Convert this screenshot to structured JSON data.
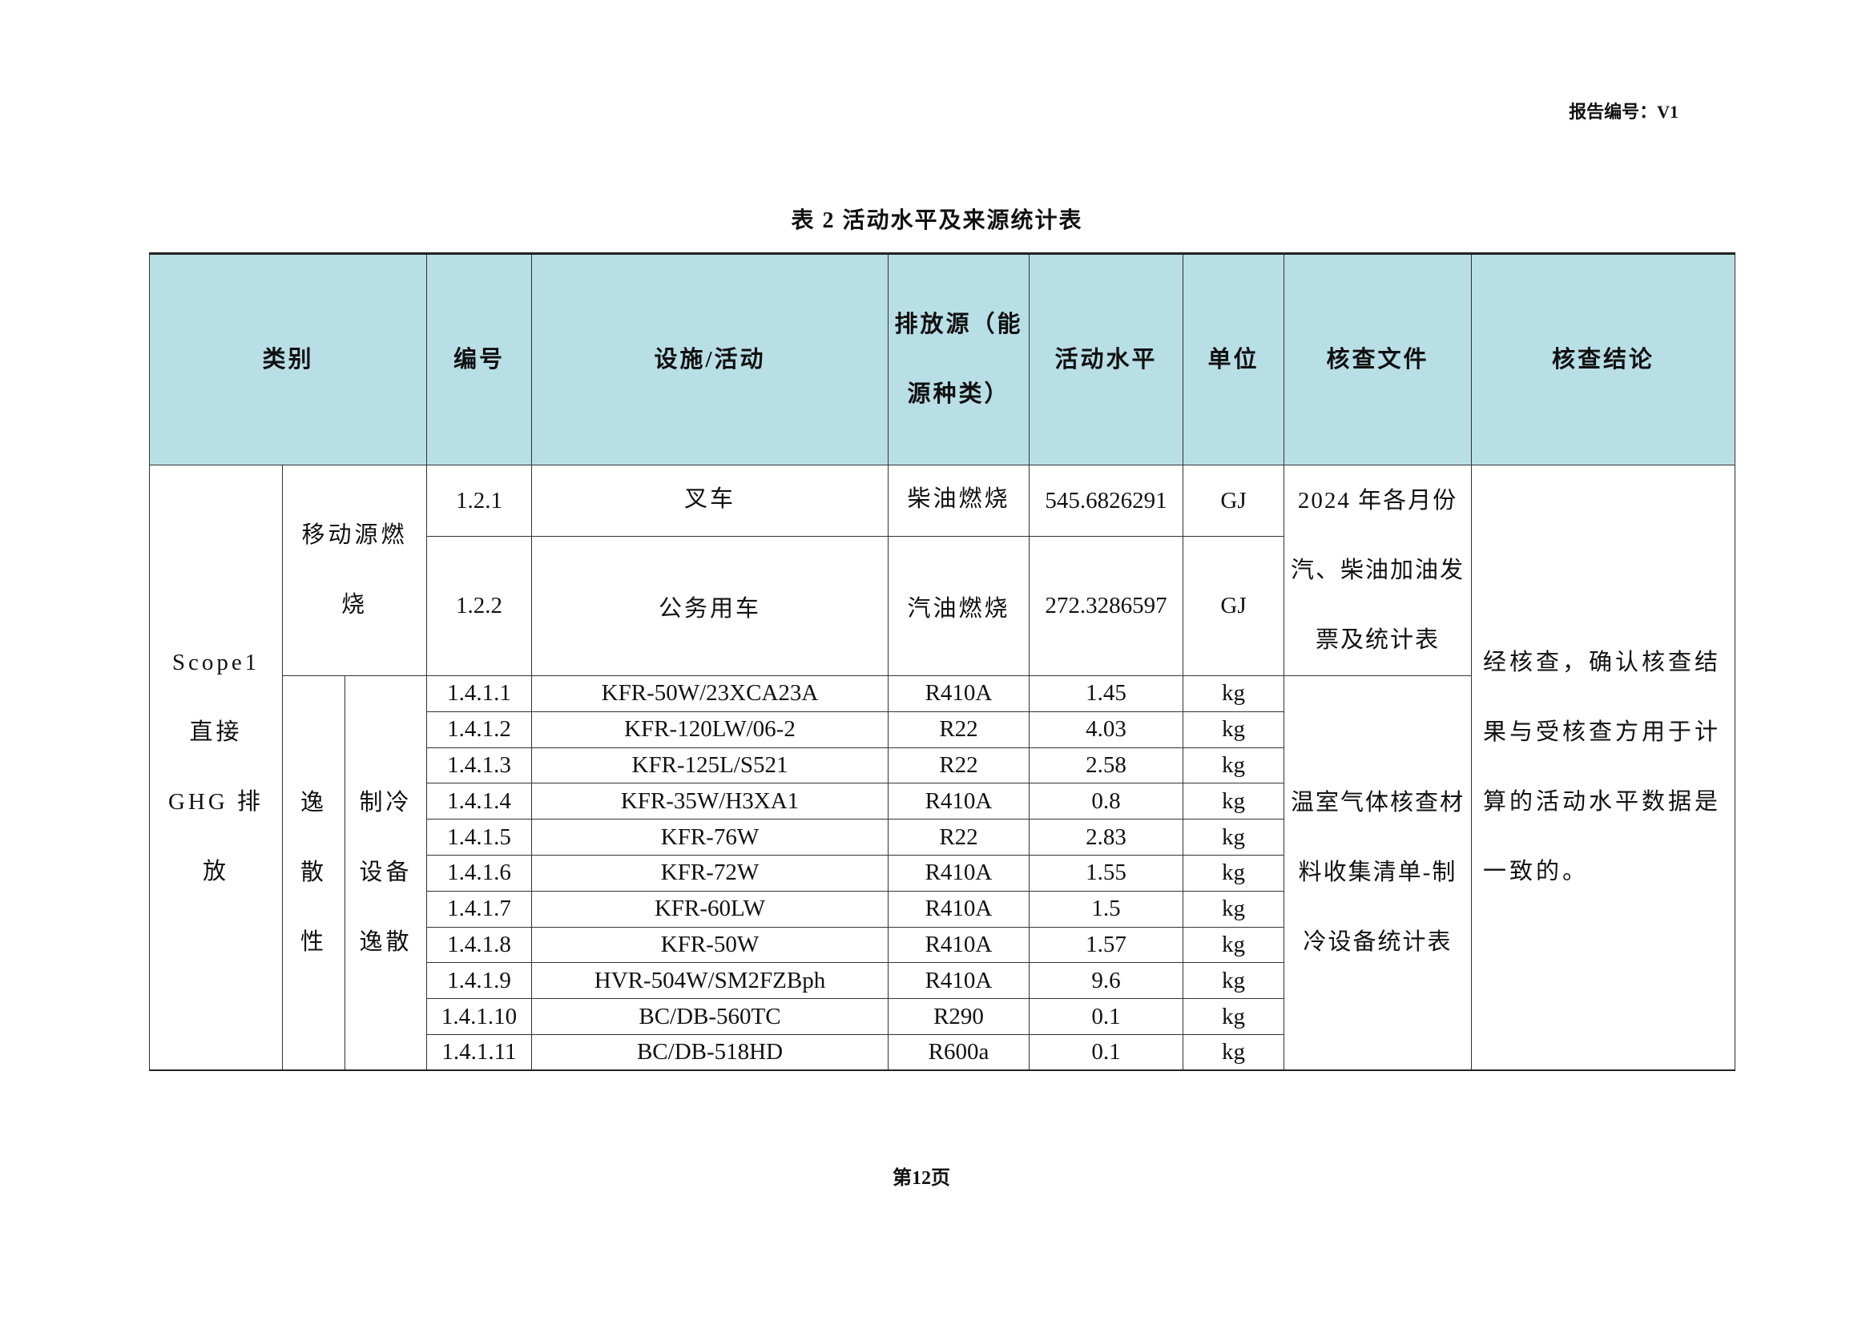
{
  "header": {
    "report_no": "报告编号：V1"
  },
  "caption": "表 2  活动水平及来源统计表",
  "table": {
    "columns": [
      "类别",
      "编号",
      "设施/活动",
      "排放源（能源种类）",
      "活动水平",
      "单位",
      "核查文件",
      "核查结论"
    ],
    "category": "Scope1 直接 GHG 排放",
    "mobile": {
      "group": "移动源燃烧",
      "rows": [
        {
          "id": "1.2.1",
          "facility": "叉车",
          "source": "柴油燃烧",
          "level": "545.6826291",
          "unit": "GJ"
        },
        {
          "id": "1.2.2",
          "facility": "公务用车",
          "source": "汽油燃烧",
          "level": "272.3286597",
          "unit": "GJ"
        }
      ],
      "document": "2024 年各月份汽、柴油加油发票及统计表"
    },
    "fugitive": {
      "group": "逸散性",
      "subgroup": "制冷设备逸散",
      "rows": [
        {
          "id": "1.4.1.1",
          "facility": "KFR-50W/23XCA23A",
          "source": "R410A",
          "level": "1.45",
          "unit": "kg"
        },
        {
          "id": "1.4.1.2",
          "facility": "KFR-120LW/06-2",
          "source": "R22",
          "level": "4.03",
          "unit": "kg"
        },
        {
          "id": "1.4.1.3",
          "facility": "KFR-125L/S521",
          "source": "R22",
          "level": "2.58",
          "unit": "kg"
        },
        {
          "id": "1.4.1.4",
          "facility": "KFR-35W/H3XA1",
          "source": "R410A",
          "level": "0.8",
          "unit": "kg"
        },
        {
          "id": "1.4.1.5",
          "facility": "KFR-76W",
          "source": "R22",
          "level": "2.83",
          "unit": "kg"
        },
        {
          "id": "1.4.1.6",
          "facility": "KFR-72W",
          "source": "R410A",
          "level": "1.55",
          "unit": "kg"
        },
        {
          "id": "1.4.1.7",
          "facility": "KFR-60LW",
          "source": "R410A",
          "level": "1.5",
          "unit": "kg"
        },
        {
          "id": "1.4.1.8",
          "facility": "KFR-50W",
          "source": "R410A",
          "level": "1.57",
          "unit": "kg"
        },
        {
          "id": "1.4.1.9",
          "facility": "HVR-504W/SM2FZBph",
          "source": "R410A",
          "level": "9.6",
          "unit": "kg"
        },
        {
          "id": "1.4.1.10",
          "facility": "BC/DB-560TC",
          "source": "R290",
          "level": "0.1",
          "unit": "kg"
        },
        {
          "id": "1.4.1.11",
          "facility": "BC/DB-518HD",
          "source": "R600a",
          "level": "0.1",
          "unit": "kg"
        }
      ],
      "document": "温室气体核查材料收集清单-制冷设备统计表"
    },
    "conclusion": "经核查，确认核查结果与受核查方用于计算的活动水平数据是一致的。"
  },
  "footer": {
    "page": "第12页"
  },
  "colors": {
    "header_bg": "#b9dfe6"
  }
}
